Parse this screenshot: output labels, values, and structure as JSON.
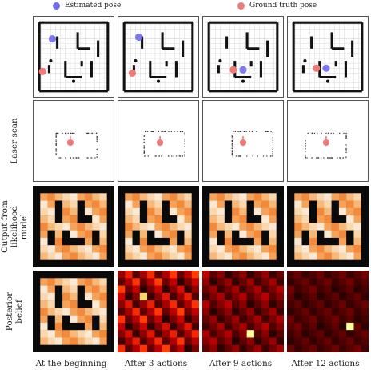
{
  "legend": {
    "estimated": "Estimated pose",
    "ground_truth": "Ground truth pose",
    "estimated_color": "#6f6cf0",
    "ground_truth_color": "#f07a78"
  },
  "row_labels": [
    "",
    "Laser scan",
    "Output from likelihood model",
    "Posterior belief"
  ],
  "row_label_lines": {
    "r1": [
      "Laser scan"
    ],
    "r2": [
      "Output from",
      "likelihood",
      "model"
    ],
    "r3": [
      "Posterior",
      "belief"
    ]
  },
  "column_labels": [
    "At the beginning",
    "After 3 actions",
    "After 9 actions",
    "After 12 actions"
  ]
}
